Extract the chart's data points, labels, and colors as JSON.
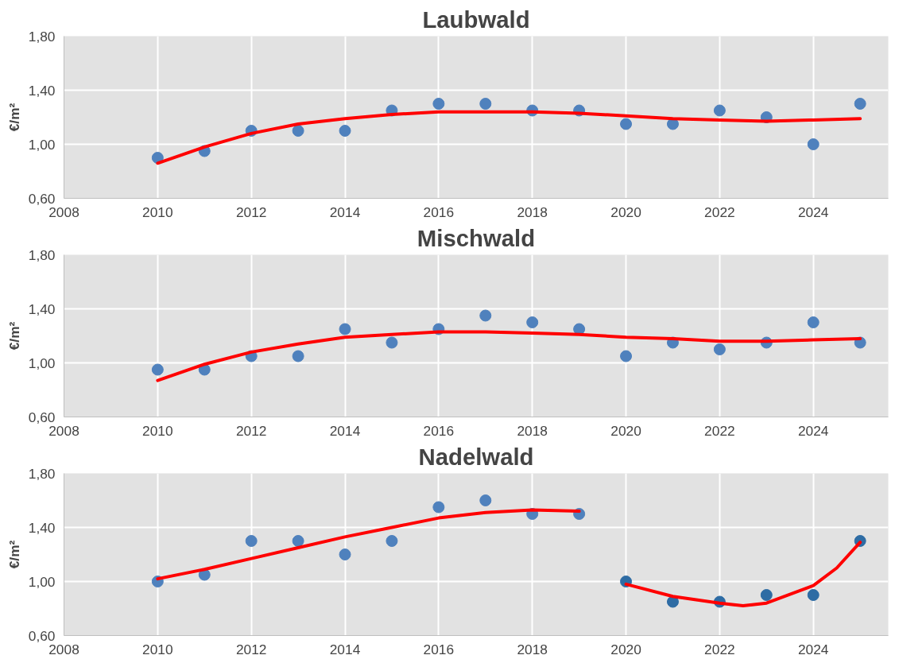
{
  "chart_data": [
    {
      "type": "scatter",
      "title": "Laubwald",
      "ylabel": "€/m²",
      "xlim": [
        2008,
        2025.6
      ],
      "xticks": [
        2008,
        2010,
        2012,
        2014,
        2016,
        2018,
        2020,
        2022,
        2024
      ],
      "ylim": [
        0.6,
        1.8
      ],
      "yticks": [
        {
          "value": 0.6,
          "label": "0,60"
        },
        {
          "value": 1.0,
          "label": "1,00"
        },
        {
          "value": 1.4,
          "label": "1,40"
        },
        {
          "value": 1.8,
          "label": "1,80"
        }
      ],
      "grid": true,
      "series": [
        {
          "marker": "circle",
          "color": "#4f81bd",
          "x": [
            2010,
            2011,
            2012,
            2013,
            2014,
            2015,
            2016,
            2017,
            2018,
            2019,
            2020,
            2021,
            2022,
            2023,
            2024,
            2025
          ],
          "values": [
            0.9,
            0.95,
            1.1,
            1.1,
            1.1,
            1.25,
            1.3,
            1.3,
            1.25,
            1.25,
            1.15,
            1.15,
            1.25,
            1.2,
            1.0,
            1.3
          ]
        },
        {
          "type": "line",
          "line_style": "solid",
          "color": "#ff0000",
          "x": [
            2010,
            2011,
            2012,
            2013,
            2014,
            2015,
            2016,
            2017,
            2018,
            2019,
            2020,
            2021,
            2022,
            2023,
            2024,
            2025
          ],
          "values": [
            0.86,
            0.98,
            1.08,
            1.15,
            1.19,
            1.22,
            1.24,
            1.24,
            1.24,
            1.23,
            1.21,
            1.19,
            1.18,
            1.17,
            1.18,
            1.19
          ]
        }
      ]
    },
    {
      "type": "scatter",
      "title": "Mischwald",
      "ylabel": "€/m²",
      "xlim": [
        2008,
        2025.6
      ],
      "xticks": [
        2008,
        2010,
        2012,
        2014,
        2016,
        2018,
        2020,
        2022,
        2024
      ],
      "ylim": [
        0.6,
        1.8
      ],
      "yticks": [
        {
          "value": 0.6,
          "label": "0,60"
        },
        {
          "value": 1.0,
          "label": "1,00"
        },
        {
          "value": 1.4,
          "label": "1,40"
        },
        {
          "value": 1.8,
          "label": "1,80"
        }
      ],
      "grid": true,
      "series": [
        {
          "marker": "circle",
          "color": "#4f81bd",
          "x": [
            2010,
            2011,
            2012,
            2013,
            2014,
            2015,
            2016,
            2017,
            2018,
            2019,
            2020,
            2021,
            2022,
            2023,
            2024,
            2025
          ],
          "values": [
            0.95,
            0.95,
            1.05,
            1.05,
            1.25,
            1.15,
            1.25,
            1.35,
            1.3,
            1.25,
            1.05,
            1.15,
            1.1,
            1.15,
            1.3,
            1.15
          ]
        },
        {
          "type": "line",
          "line_style": "solid",
          "color": "#ff0000",
          "x": [
            2010,
            2011,
            2012,
            2013,
            2014,
            2015,
            2016,
            2017,
            2018,
            2019,
            2020,
            2021,
            2022,
            2023,
            2024,
            2025
          ],
          "values": [
            0.87,
            0.99,
            1.08,
            1.14,
            1.19,
            1.21,
            1.23,
            1.23,
            1.22,
            1.21,
            1.19,
            1.18,
            1.16,
            1.16,
            1.17,
            1.18
          ]
        }
      ]
    },
    {
      "type": "scatter",
      "title": "Nadelwald",
      "ylabel": "€/m²",
      "xlim": [
        2008,
        2025.6
      ],
      "xticks": [
        2008,
        2010,
        2012,
        2014,
        2016,
        2018,
        2020,
        2022,
        2024
      ],
      "ylim": [
        0.6,
        1.8
      ],
      "yticks": [
        {
          "value": 0.6,
          "label": "0,60"
        },
        {
          "value": 1.0,
          "label": "1,00"
        },
        {
          "value": 1.4,
          "label": "1,40"
        },
        {
          "value": 1.8,
          "label": "1,80"
        }
      ],
      "grid": true,
      "series": [
        {
          "marker": "circle",
          "color": "#4f81bd",
          "x": [
            2010,
            2011,
            2012,
            2013,
            2014,
            2015,
            2016,
            2017,
            2018,
            2019
          ],
          "values": [
            1.0,
            1.05,
            1.3,
            1.3,
            1.2,
            1.3,
            1.55,
            1.6,
            1.5,
            1.5
          ]
        },
        {
          "marker": "circle",
          "color": "#2e6ca4",
          "x": [
            2020,
            2021,
            2022,
            2023,
            2024,
            2025
          ],
          "values": [
            1.0,
            0.85,
            0.85,
            0.9,
            0.9,
            1.3
          ]
        },
        {
          "type": "line",
          "line_style": "solid",
          "color": "#ff0000",
          "x": [
            2010,
            2011,
            2012,
            2013,
            2014,
            2015,
            2016,
            2017,
            2018,
            2019
          ],
          "values": [
            1.02,
            1.09,
            1.17,
            1.25,
            1.33,
            1.4,
            1.47,
            1.51,
            1.53,
            1.52
          ]
        },
        {
          "type": "line",
          "line_style": "solid",
          "color": "#ff0000",
          "x": [
            2020,
            2021,
            2022,
            2022.5,
            2023,
            2024,
            2024.5,
            2025
          ],
          "values": [
            0.98,
            0.89,
            0.84,
            0.82,
            0.84,
            0.97,
            1.1,
            1.29
          ]
        }
      ]
    }
  ]
}
